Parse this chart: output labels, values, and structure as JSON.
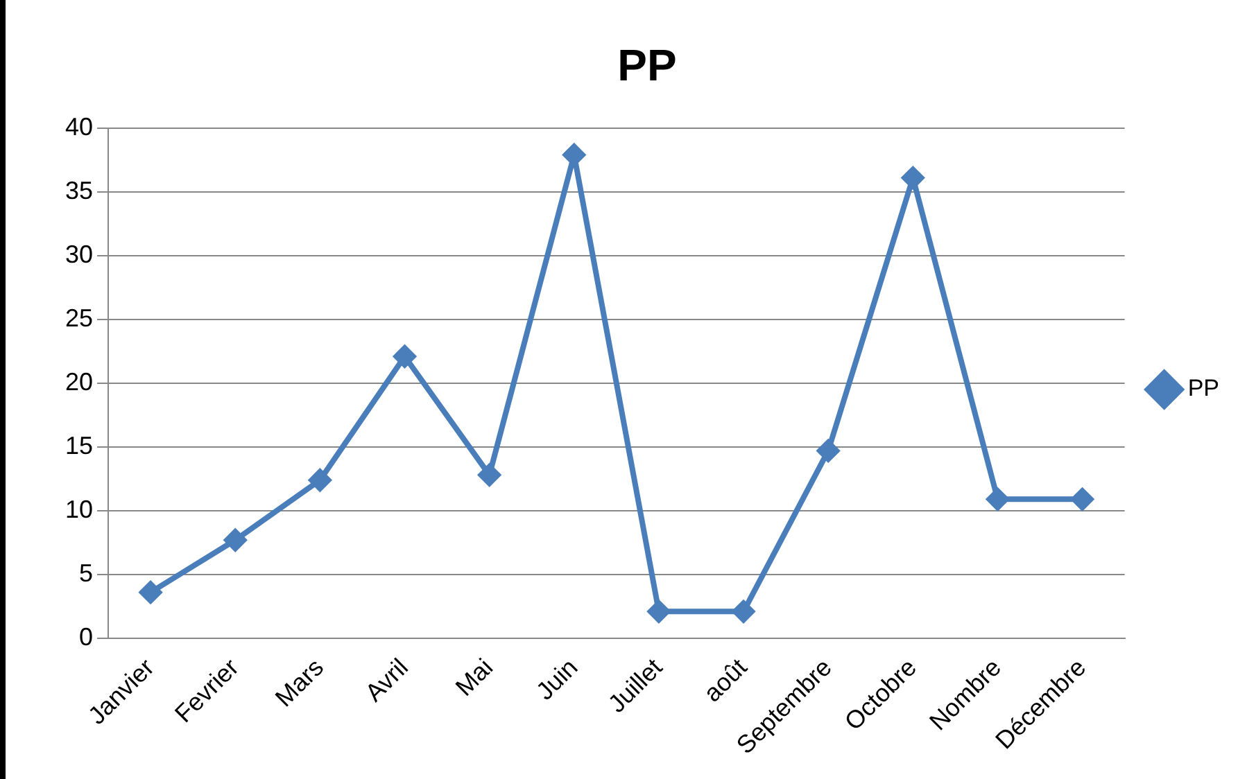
{
  "chart_data": {
    "type": "line",
    "title": "PP",
    "categories": [
      "Janvier",
      "Fevrier",
      "Mars",
      "Avril",
      "Mai",
      "Juin",
      "Juillet",
      "août",
      "Septembre",
      "Octobre",
      "Nombre",
      "Décembre"
    ],
    "series": [
      {
        "name": "PP",
        "color": "#4a7ebb",
        "values": [
          3.6,
          7.7,
          12.4,
          22.1,
          12.8,
          37.9,
          2.1,
          2.1,
          14.7,
          36.1,
          10.9,
          10.9
        ]
      }
    ],
    "ylim": [
      0,
      40
    ],
    "yticks": [
      0,
      5,
      10,
      15,
      20,
      25,
      30,
      35,
      40
    ],
    "grid": "y",
    "legend": "right",
    "marker": "diamond",
    "line_style": "solid"
  }
}
